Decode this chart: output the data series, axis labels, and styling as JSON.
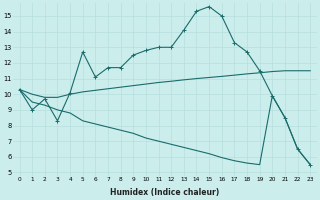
{
  "xlabel": "Humidex (Indice chaleur)",
  "xlim": [
    -0.5,
    23.5
  ],
  "ylim": [
    4.8,
    15.8
  ],
  "yticks": [
    5,
    6,
    7,
    8,
    9,
    10,
    11,
    12,
    13,
    14,
    15
  ],
  "xticks": [
    0,
    1,
    2,
    3,
    4,
    5,
    6,
    7,
    8,
    9,
    10,
    11,
    12,
    13,
    14,
    15,
    16,
    17,
    18,
    19,
    20,
    21,
    22,
    23
  ],
  "bg_color": "#cbeeed",
  "line_color": "#1a6b6b",
  "grid_color": "#b8dede",
  "line1_x": [
    0,
    1,
    2,
    3,
    4,
    5,
    6,
    7,
    8,
    9,
    10,
    11,
    12,
    13,
    14,
    15,
    16,
    17,
    18,
    19,
    20,
    21,
    22,
    23
  ],
  "line1_y": [
    10.3,
    9.0,
    9.7,
    8.3,
    10.1,
    12.7,
    11.1,
    11.7,
    11.7,
    12.5,
    12.8,
    13.0,
    13.0,
    14.1,
    15.3,
    15.6,
    15.0,
    13.3,
    12.7,
    11.5,
    9.9,
    8.5,
    6.5,
    5.5
  ],
  "line2_x": [
    0,
    1,
    2,
    3,
    4,
    5,
    6,
    7,
    8,
    9,
    10,
    11,
    12,
    13,
    14,
    15,
    16,
    17,
    18,
    19,
    20,
    21,
    22,
    23
  ],
  "line2_y": [
    10.3,
    10.0,
    9.8,
    9.8,
    10.0,
    10.15,
    10.25,
    10.35,
    10.45,
    10.55,
    10.65,
    10.75,
    10.83,
    10.92,
    11.0,
    11.07,
    11.14,
    11.22,
    11.3,
    11.37,
    11.45,
    11.5,
    11.5,
    11.5
  ],
  "line3_x": [
    0,
    1,
    2,
    3,
    4,
    5,
    6,
    7,
    8,
    9,
    10,
    11,
    12,
    13,
    14,
    15,
    16,
    17,
    18,
    19,
    20,
    21,
    22,
    23
  ],
  "line3_y": [
    10.3,
    9.5,
    9.3,
    9.0,
    8.8,
    8.3,
    8.1,
    7.9,
    7.7,
    7.5,
    7.2,
    7.0,
    6.8,
    6.6,
    6.4,
    6.2,
    5.95,
    5.75,
    5.6,
    5.5,
    9.9,
    8.5,
    6.5,
    5.5
  ]
}
